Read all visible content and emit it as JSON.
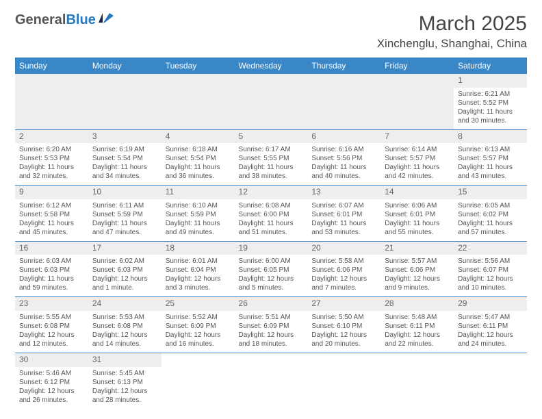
{
  "logo": {
    "text1": "General",
    "text2": "Blue"
  },
  "title": "March 2025",
  "location": "Xinchenglu, Shanghai, China",
  "colors": {
    "header_bg": "#3a87c8",
    "header_text": "#ffffff",
    "daynum_bg": "#eeeeee",
    "border": "#3a87c8",
    "text": "#555555",
    "logo_blue": "#2878c0"
  },
  "dayHeaders": [
    "Sunday",
    "Monday",
    "Tuesday",
    "Wednesday",
    "Thursday",
    "Friday",
    "Saturday"
  ],
  "weeks": [
    [
      null,
      null,
      null,
      null,
      null,
      null,
      {
        "n": "1",
        "sr": "6:21 AM",
        "ss": "5:52 PM",
        "dl": "11 hours and 30 minutes."
      }
    ],
    [
      {
        "n": "2",
        "sr": "6:20 AM",
        "ss": "5:53 PM",
        "dl": "11 hours and 32 minutes."
      },
      {
        "n": "3",
        "sr": "6:19 AM",
        "ss": "5:54 PM",
        "dl": "11 hours and 34 minutes."
      },
      {
        "n": "4",
        "sr": "6:18 AM",
        "ss": "5:54 PM",
        "dl": "11 hours and 36 minutes."
      },
      {
        "n": "5",
        "sr": "6:17 AM",
        "ss": "5:55 PM",
        "dl": "11 hours and 38 minutes."
      },
      {
        "n": "6",
        "sr": "6:16 AM",
        "ss": "5:56 PM",
        "dl": "11 hours and 40 minutes."
      },
      {
        "n": "7",
        "sr": "6:14 AM",
        "ss": "5:57 PM",
        "dl": "11 hours and 42 minutes."
      },
      {
        "n": "8",
        "sr": "6:13 AM",
        "ss": "5:57 PM",
        "dl": "11 hours and 43 minutes."
      }
    ],
    [
      {
        "n": "9",
        "sr": "6:12 AM",
        "ss": "5:58 PM",
        "dl": "11 hours and 45 minutes."
      },
      {
        "n": "10",
        "sr": "6:11 AM",
        "ss": "5:59 PM",
        "dl": "11 hours and 47 minutes."
      },
      {
        "n": "11",
        "sr": "6:10 AM",
        "ss": "5:59 PM",
        "dl": "11 hours and 49 minutes."
      },
      {
        "n": "12",
        "sr": "6:08 AM",
        "ss": "6:00 PM",
        "dl": "11 hours and 51 minutes."
      },
      {
        "n": "13",
        "sr": "6:07 AM",
        "ss": "6:01 PM",
        "dl": "11 hours and 53 minutes."
      },
      {
        "n": "14",
        "sr": "6:06 AM",
        "ss": "6:01 PM",
        "dl": "11 hours and 55 minutes."
      },
      {
        "n": "15",
        "sr": "6:05 AM",
        "ss": "6:02 PM",
        "dl": "11 hours and 57 minutes."
      }
    ],
    [
      {
        "n": "16",
        "sr": "6:03 AM",
        "ss": "6:03 PM",
        "dl": "11 hours and 59 minutes."
      },
      {
        "n": "17",
        "sr": "6:02 AM",
        "ss": "6:03 PM",
        "dl": "12 hours and 1 minute."
      },
      {
        "n": "18",
        "sr": "6:01 AM",
        "ss": "6:04 PM",
        "dl": "12 hours and 3 minutes."
      },
      {
        "n": "19",
        "sr": "6:00 AM",
        "ss": "6:05 PM",
        "dl": "12 hours and 5 minutes."
      },
      {
        "n": "20",
        "sr": "5:58 AM",
        "ss": "6:06 PM",
        "dl": "12 hours and 7 minutes."
      },
      {
        "n": "21",
        "sr": "5:57 AM",
        "ss": "6:06 PM",
        "dl": "12 hours and 9 minutes."
      },
      {
        "n": "22",
        "sr": "5:56 AM",
        "ss": "6:07 PM",
        "dl": "12 hours and 10 minutes."
      }
    ],
    [
      {
        "n": "23",
        "sr": "5:55 AM",
        "ss": "6:08 PM",
        "dl": "12 hours and 12 minutes."
      },
      {
        "n": "24",
        "sr": "5:53 AM",
        "ss": "6:08 PM",
        "dl": "12 hours and 14 minutes."
      },
      {
        "n": "25",
        "sr": "5:52 AM",
        "ss": "6:09 PM",
        "dl": "12 hours and 16 minutes."
      },
      {
        "n": "26",
        "sr": "5:51 AM",
        "ss": "6:09 PM",
        "dl": "12 hours and 18 minutes."
      },
      {
        "n": "27",
        "sr": "5:50 AM",
        "ss": "6:10 PM",
        "dl": "12 hours and 20 minutes."
      },
      {
        "n": "28",
        "sr": "5:48 AM",
        "ss": "6:11 PM",
        "dl": "12 hours and 22 minutes."
      },
      {
        "n": "29",
        "sr": "5:47 AM",
        "ss": "6:11 PM",
        "dl": "12 hours and 24 minutes."
      }
    ],
    [
      {
        "n": "30",
        "sr": "5:46 AM",
        "ss": "6:12 PM",
        "dl": "12 hours and 26 minutes."
      },
      {
        "n": "31",
        "sr": "5:45 AM",
        "ss": "6:13 PM",
        "dl": "12 hours and 28 minutes."
      },
      null,
      null,
      null,
      null,
      null
    ]
  ],
  "labels": {
    "sunrise": "Sunrise: ",
    "sunset": "Sunset: ",
    "daylight": "Daylight: "
  }
}
